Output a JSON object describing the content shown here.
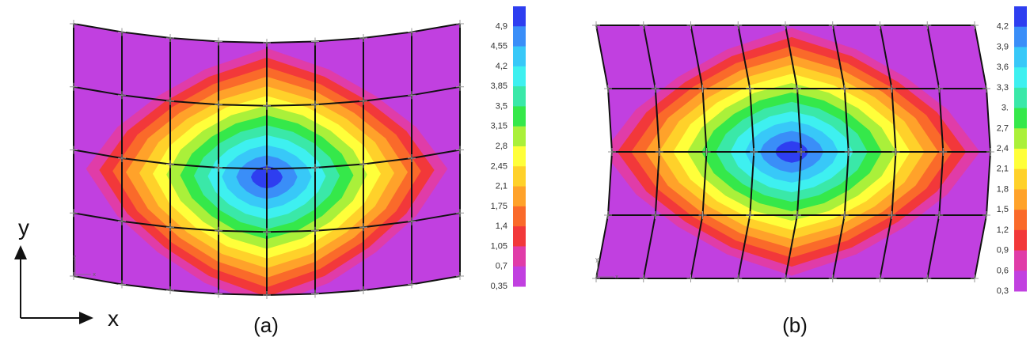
{
  "figure": {
    "axes_indicator": {
      "y_label": "y",
      "x_label": "x"
    },
    "panels": [
      {
        "id": "a",
        "caption": "(a)",
        "mode": "bend-horizontal",
        "scale_labels": [
          "4,9",
          "4,55",
          "4,2",
          "3,85",
          "3,5",
          "3,15",
          "2,8",
          "2,45",
          "2,1",
          "1,75",
          "1,4",
          "1,05",
          "0,7",
          "0,35"
        ],
        "corner_axis_mark": {
          "x": "x",
          "y": "y"
        }
      },
      {
        "id": "b",
        "caption": "(b)",
        "mode": "bend-vertical",
        "scale_labels": [
          "4,2",
          "3,9",
          "3,6",
          "3,3",
          "3.",
          "2,7",
          "2,4",
          "2,1",
          "1,8",
          "1,5",
          "1,2",
          "0,9",
          "0,6",
          "0,3"
        ],
        "corner_axis_mark": {
          "x": "x",
          "y": "y"
        }
      }
    ],
    "colors": [
      "#c140e0",
      "#e03ca8",
      "#f2383a",
      "#fa6a2a",
      "#ffa22a",
      "#ffd12a",
      "#ffff3a",
      "#aaf03a",
      "#35e84a",
      "#3ae8a8",
      "#3ef0f0",
      "#38c8f8",
      "#3a8ef8",
      "#2e3ef0"
    ]
  }
}
